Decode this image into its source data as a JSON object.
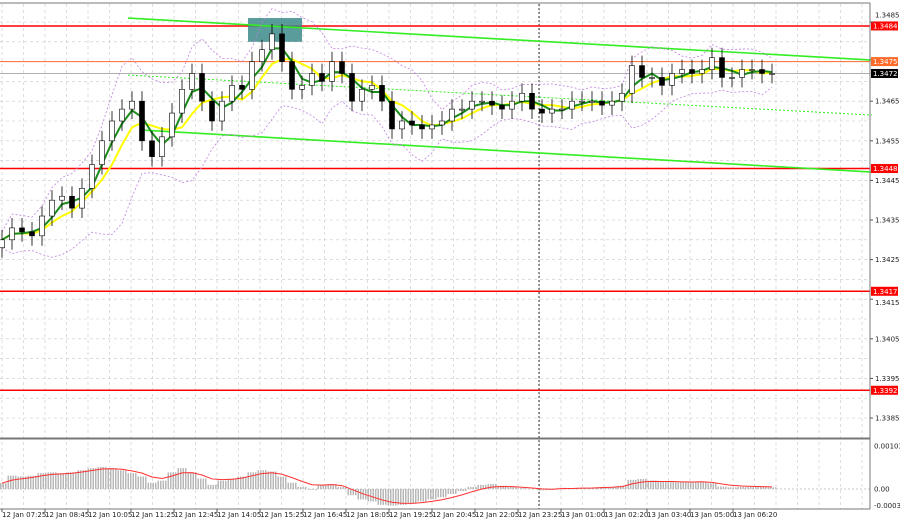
{
  "chart_data": {
    "type": "candlestick",
    "price_ticks": [
      "1.3485",
      "1.3465",
      "1.3455",
      "1.3445",
      "1.3435",
      "1.3425",
      "1.3415",
      "1.3405",
      "1.3395",
      "1.3385"
    ],
    "price_range": [
      1.3378,
      1.349
    ],
    "time_ticks": [
      "12 Jan 07:25",
      "12 Jan 08:45",
      "12 Jan 10:05",
      "12 Jan 11:25",
      "12 Jan 12:45",
      "12 Jan 14:05",
      "12 Jan 15:25",
      "12 Jan 16:45",
      "12 Jan 18:05",
      "12 Jan 19:25",
      "12 Jan 20:45",
      "12 Jan 22:05",
      "12 Jan 23:25",
      "13 Jan 01:00",
      "13 Jan 02:20",
      "13 Jan 03:40",
      "13 Jan 05:00",
      "13 Jan 06:20"
    ],
    "closes": [
      1.343,
      1.3433,
      1.3432,
      1.3431,
      1.3436,
      1.344,
      1.3441,
      1.3438,
      1.3443,
      1.3449,
      1.3455,
      1.346,
      1.3463,
      1.3465,
      1.3455,
      1.3451,
      1.3456,
      1.3462,
      1.3468,
      1.3472,
      1.3465,
      1.346,
      1.3465,
      1.3469,
      1.3468,
      1.3475,
      1.3478,
      1.3482,
      1.3475,
      1.3468,
      1.3469,
      1.3472,
      1.347,
      1.3475,
      1.3472,
      1.3465,
      1.3468,
      1.3469,
      1.3465,
      1.3458,
      1.346,
      1.3459,
      1.3458,
      1.3459,
      1.346,
      1.3463,
      1.3463,
      1.3465,
      1.3465,
      1.3464,
      1.3463,
      1.3465,
      1.3467,
      1.3463,
      1.3462,
      1.3463,
      1.3463,
      1.3465,
      1.3465,
      1.3465,
      1.3464,
      1.3465,
      1.3467,
      1.3474,
      1.3471,
      1.3471,
      1.3469,
      1.3472,
      1.3473,
      1.3472,
      1.3473,
      1.3476,
      1.3471,
      1.3471,
      1.3473,
      1.3473,
      1.3472,
      1.3472
    ],
    "levels": [
      {
        "price": "1.3484",
        "color": "#ff0000"
      },
      {
        "price": "1.3475",
        "color": "#ff6a2a"
      },
      {
        "price": "1.3472",
        "color": "#000000"
      },
      {
        "price": "1.3448",
        "color": "#ff0000"
      },
      {
        "price": "1.3417",
        "color": "#ff0000"
      },
      {
        "price": "1.3392",
        "color": "#ff0000"
      }
    ],
    "trendlines": [
      {
        "from": [
          12.6,
          1.3486
        ],
        "to": [
          87,
          1.34754
        ],
        "style": "solid",
        "color": "#33ee22"
      },
      {
        "from": [
          14,
          1.34577
        ],
        "to": [
          87,
          1.34471
        ],
        "style": "solid",
        "color": "#33ee22"
      },
      {
        "from": [
          12.6,
          1.34716
        ],
        "to": [
          87,
          1.34615
        ],
        "style": "dotted",
        "color": "#33ee22"
      }
    ],
    "highlight_box": {
      "from": [
        24.6,
        1.3486
      ],
      "to": [
        30,
        1.348
      ],
      "color": "#3d8a8a"
    },
    "session_separator_index": 53.7,
    "moving_averages": [
      {
        "color": "#1a8c1a"
      },
      {
        "color": "#ffff00"
      }
    ],
    "envelope_color": "#c080e0",
    "macd": {
      "ticks": [
        "0.00103",
        "0.00",
        "-0.00039"
      ],
      "range": [
        -0.00039,
        0.00103
      ],
      "histogram": [
        0.00014,
        0.00032,
        0.0003,
        0.00032,
        0.00038,
        0.0004,
        0.00038,
        0.0004,
        0.00045,
        0.0005,
        0.00053,
        0.0005,
        0.00045,
        0.00038,
        0.0003,
        0.00015,
        0.0002,
        0.0004,
        0.0005,
        0.0004,
        0.00025,
        0.0001,
        0.0002,
        0.00025,
        0.0003,
        0.0004,
        0.00045,
        0.00042,
        0.0003,
        0.00015,
        5e-05,
        -2e-05,
        8e-05,
        0.00012,
        5e-05,
        -0.00015,
        -0.00025,
        -0.0003,
        -0.00038,
        -0.0004,
        -0.00038,
        -0.00035,
        -0.0003,
        -0.00025,
        -0.0002,
        -0.00012,
        -5e-05,
        5e-05,
        0.0001,
        0.00012,
        8e-05,
        5e-05,
        2e-05,
        0,
        -3e-05,
        -2e-05,
        3e-05,
        2e-05,
        3e-05,
        3e-05,
        5e-05,
        5e-05,
        8e-05,
        0.00022,
        0.00024,
        0.0002,
        0.00018,
        0.00018,
        0.00016,
        0.00016,
        0.00018,
        0.00014,
        6e-05,
        4e-05,
        5e-05,
        5e-05,
        5e-05,
        4e-05
      ],
      "hist_color": "#b4b4b4",
      "signal_color": "#ff3030"
    }
  }
}
